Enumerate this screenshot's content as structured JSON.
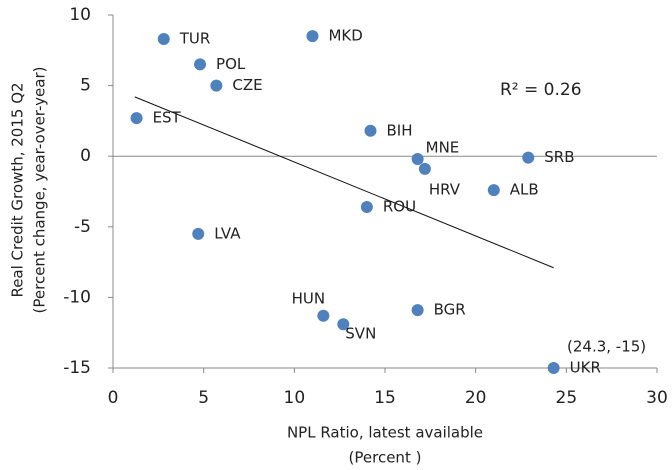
{
  "chart_data": {
    "type": "scatter",
    "x_label": [
      "NPL Ratio, latest available",
      "(Percent )"
    ],
    "y_label": [
      "Real Credit Growth, 2015 Q2",
      "(Percent change, year-over-year)"
    ],
    "point_labels": [
      "TUR",
      "POL",
      "CZE",
      "MKD",
      "EST",
      "BIH",
      "MNE",
      "HRV",
      "SRB",
      "ALB",
      "ROU",
      "LVA",
      "HUN",
      "SVN",
      "BGR",
      "UKR"
    ],
    "x": [
      2.8,
      4.8,
      5.7,
      11.0,
      1.3,
      14.2,
      16.8,
      17.2,
      22.9,
      21.0,
      14.0,
      4.7,
      11.6,
      12.7,
      16.8,
      24.3
    ],
    "values": [
      8.3,
      6.5,
      5.0,
      8.5,
      2.7,
      1.8,
      -0.2,
      -0.9,
      -0.1,
      -2.4,
      -3.6,
      -5.5,
      -11.3,
      -11.9,
      -10.9,
      -15
    ],
    "color": "#4f81bd",
    "trendline": {
      "x": [
        1.2,
        24.3
      ],
      "y": [
        4.2,
        -7.9
      ]
    },
    "annotations": [
      "R² = 0.26",
      "(24.3, -15)"
    ],
    "xlim": [
      0,
      30
    ],
    "xticks": [
      0,
      5,
      10,
      15,
      20,
      25,
      30
    ],
    "ylim": [
      -15,
      10
    ],
    "yticks": [
      -15,
      -10,
      -5,
      0,
      5,
      10
    ]
  }
}
